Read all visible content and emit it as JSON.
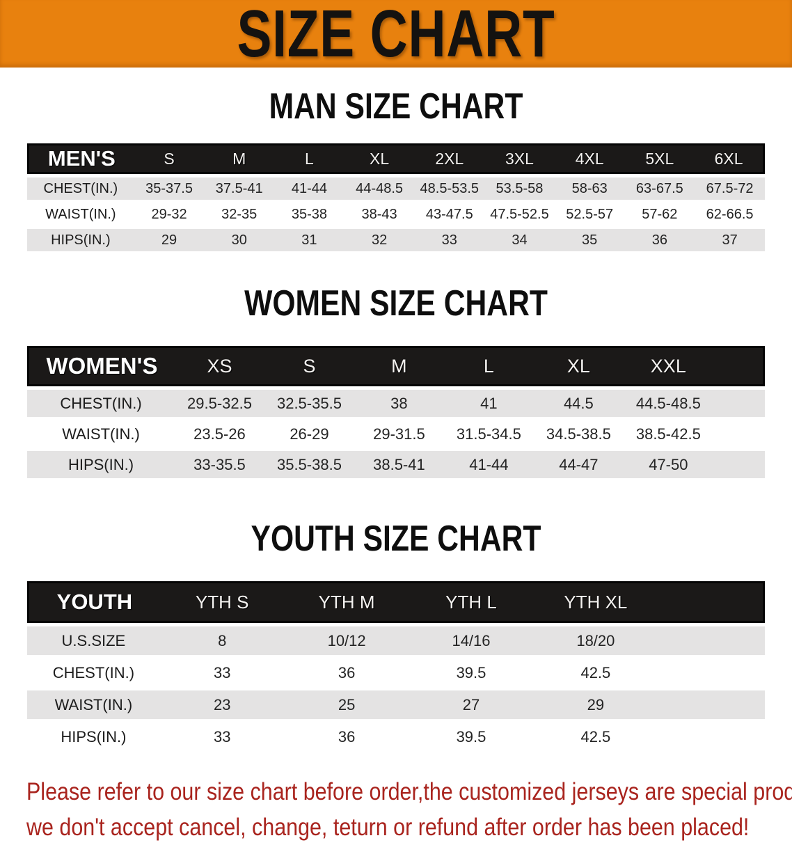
{
  "banner": {
    "title": "SIZE CHART"
  },
  "colors": {
    "banner-bg": "#E8810E",
    "bar-bg": "#1B1918",
    "stripe-bg": "#E4E3E3",
    "ink": "#242424",
    "warn": "#A9241E"
  },
  "sections": [
    {
      "title": "MAN SIZE CHART",
      "header_label": "MEN'S",
      "columns": [
        "S",
        "M",
        "L",
        "XL",
        "2XL",
        "3XL",
        "4XL",
        "5XL",
        "6XL"
      ],
      "rows": [
        {
          "label": "CHEST(IN.)",
          "values": [
            "35-37.5",
            "37.5-41",
            "41-44",
            "44-48.5",
            "48.5-53.5",
            "53.5-58",
            "58-63",
            "63-67.5",
            "67.5-72"
          ]
        },
        {
          "label": "WAIST(IN.)",
          "values": [
            "29-32",
            "32-35",
            "35-38",
            "38-43",
            "43-47.5",
            "47.5-52.5",
            "52.5-57",
            "57-62",
            "62-66.5"
          ]
        },
        {
          "label": "HIPS(IN.)",
          "values": [
            "29",
            "30",
            "31",
            "32",
            "33",
            "34",
            "35",
            "36",
            "37"
          ]
        }
      ]
    },
    {
      "title": "WOMEN SIZE CHART",
      "header_label": "WOMEN'S",
      "columns": [
        "XS",
        "S",
        "M",
        "L",
        "XL",
        "XXL"
      ],
      "rows": [
        {
          "label": "CHEST(IN.)",
          "values": [
            "29.5-32.5",
            "32.5-35.5",
            "38",
            "41",
            "44.5",
            "44.5-48.5"
          ]
        },
        {
          "label": "WAIST(IN.)",
          "values": [
            "23.5-26",
            "26-29",
            "29-31.5",
            "31.5-34.5",
            "34.5-38.5",
            "38.5-42.5"
          ]
        },
        {
          "label": "HIPS(IN.)",
          "values": [
            "33-35.5",
            "35.5-38.5",
            "38.5-41",
            "41-44",
            "44-47",
            "47-50"
          ]
        }
      ]
    },
    {
      "title": "YOUTH SIZE CHART",
      "header_label": "YOUTH",
      "columns": [
        "YTH S",
        "YTH M",
        "YTH L",
        "YTH XL"
      ],
      "rows": [
        {
          "label": "U.S.SIZE",
          "values": [
            "8",
            "10/12",
            "14/16",
            "18/20"
          ]
        },
        {
          "label": "CHEST(IN.)",
          "values": [
            "33",
            "36",
            "39.5",
            "42.5"
          ]
        },
        {
          "label": "WAIST(IN.)",
          "values": [
            "23",
            "25",
            "27",
            "29"
          ]
        },
        {
          "label": "HIPS(IN.)",
          "values": [
            "33",
            "36",
            "39.5",
            "42.5"
          ]
        }
      ]
    }
  ],
  "disclaimer": {
    "line1": "Please refer to our size chart before order,the customized jerseys are special products,",
    "line2": "we don't accept cancel, change, teturn or refund after order has been placed!"
  }
}
